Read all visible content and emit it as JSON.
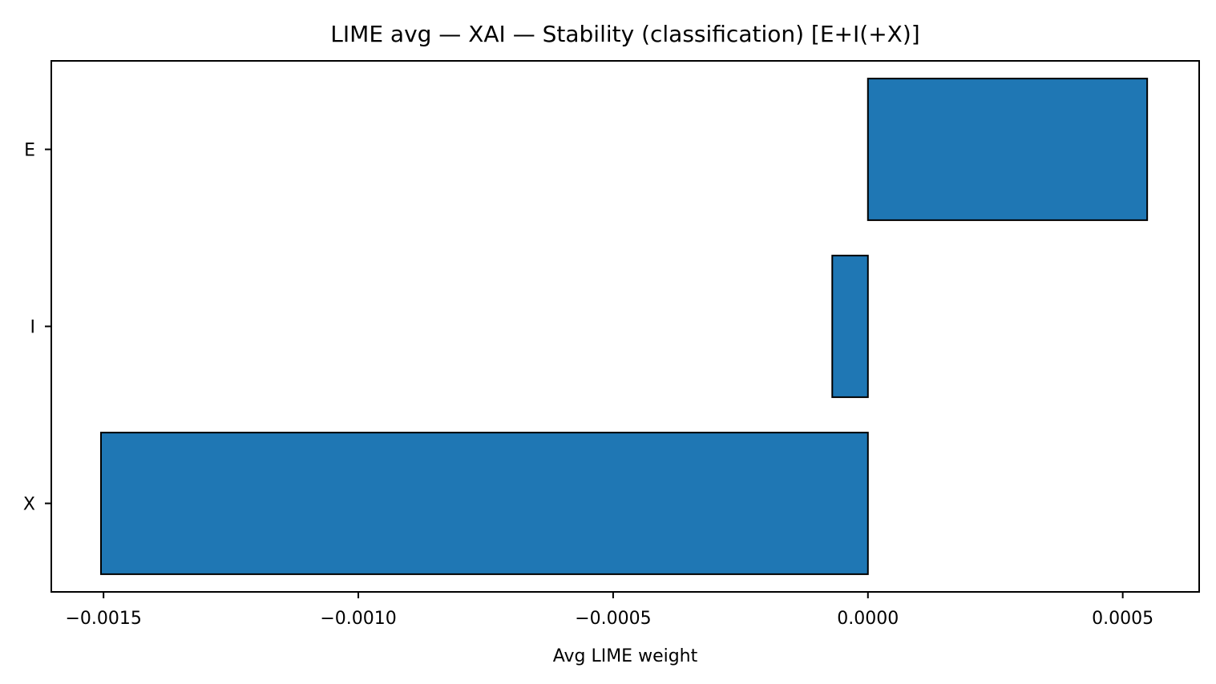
{
  "chart_data": {
    "type": "bar",
    "orientation": "horizontal",
    "title": "LIME avg — XAI — Stability (classification) [E+I(+X)]",
    "xlabel": "Avg LIME weight",
    "ylabel": "",
    "categories": [
      "E",
      "I",
      "X"
    ],
    "values": [
      0.000548,
      -7e-05,
      -0.001505
    ],
    "xlim": [
      -0.0016025,
      0.00065
    ],
    "xticks": [
      -0.0015,
      -0.001,
      -0.0005,
      0.0,
      0.0005
    ],
    "xtick_labels": [
      "−0.0015",
      "−0.0010",
      "−0.0005",
      "0.0000",
      "0.0005"
    ],
    "bar_color": "#1f77b4",
    "edge_color": "#000000",
    "grid": false,
    "legend": "none"
  }
}
